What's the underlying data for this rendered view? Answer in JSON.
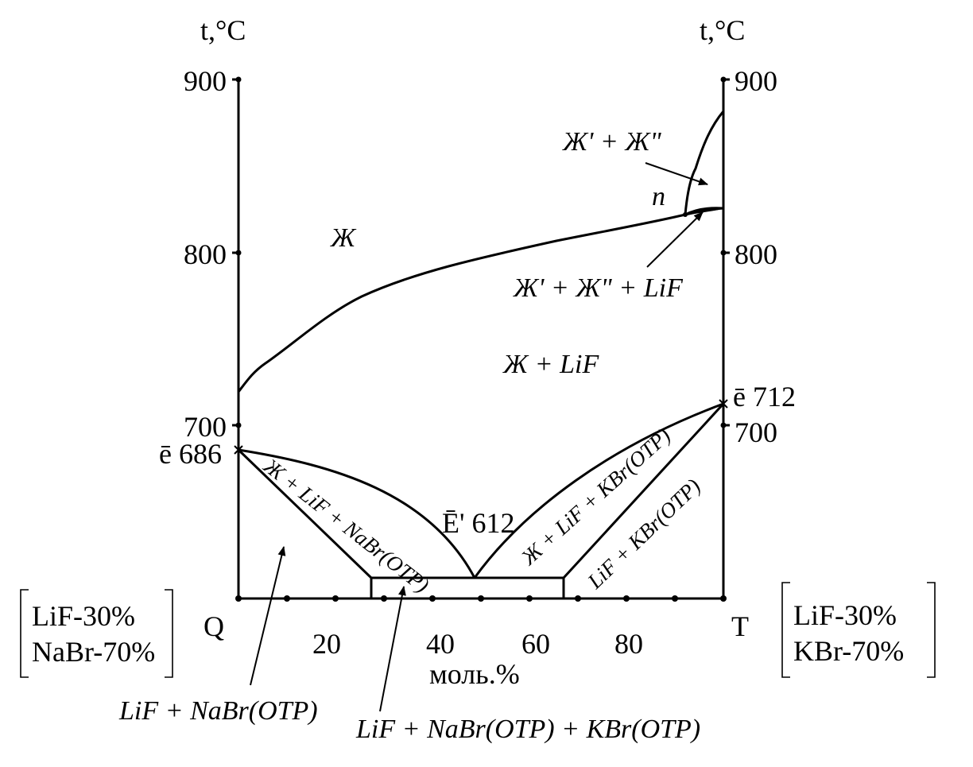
{
  "diagram": {
    "y_axis_label_left": "t,°C",
    "y_axis_label_right": "t,°C",
    "y_ticks_left": [
      "900",
      "800",
      "700"
    ],
    "y_ticks_right": [
      "900",
      "800",
      "700"
    ],
    "x_ticks": [
      "20",
      "40",
      "60",
      "80"
    ],
    "x_axis_label": "моль.%",
    "left_vertex": "Q",
    "right_vertex": "T",
    "left_composition": [
      "LiF-30%",
      "NaBr-70%"
    ],
    "right_composition": [
      "LiF-30%",
      "KBr-70%"
    ],
    "points": {
      "left_eutectic": "ē 686",
      "right_eutectic": "ē 712",
      "ternary_eutectic": "Ē' 612",
      "monotectic": "n"
    },
    "regions": {
      "liquid": "Ж",
      "liquid_lif": "Ж + LiF",
      "two_liquids": "Ж' + Ж\"",
      "two_liquids_lif": "Ж' + Ж\" + LiF",
      "liq_lif_nabr": "Ж + LiF + NaBr(OTP)",
      "liq_lif_kbr": "Ж + LiF + KBr(OTP)",
      "lif_kbr": "LiF + KBr(OTP)",
      "lif_nabr": "LiF + NaBr(OTP)",
      "lif_nabr_kbr": "LiF + NaBr(OTP) + KBr(OTP)"
    }
  }
}
